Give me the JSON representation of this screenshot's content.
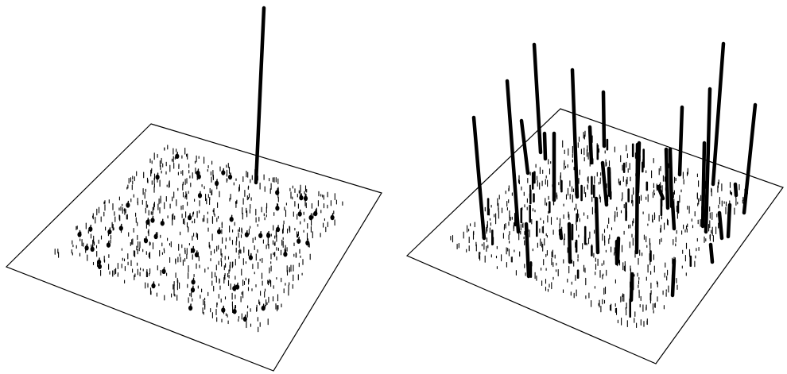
{
  "figure": {
    "panels": [
      {
        "id": "left",
        "description_visible_text": "",
        "tall_spikes": 1
      },
      {
        "id": "right",
        "description_visible_text": "",
        "tall_spikes": 34
      }
    ],
    "colors": {
      "background": "#ffffff",
      "ink": "#000000"
    }
  }
}
